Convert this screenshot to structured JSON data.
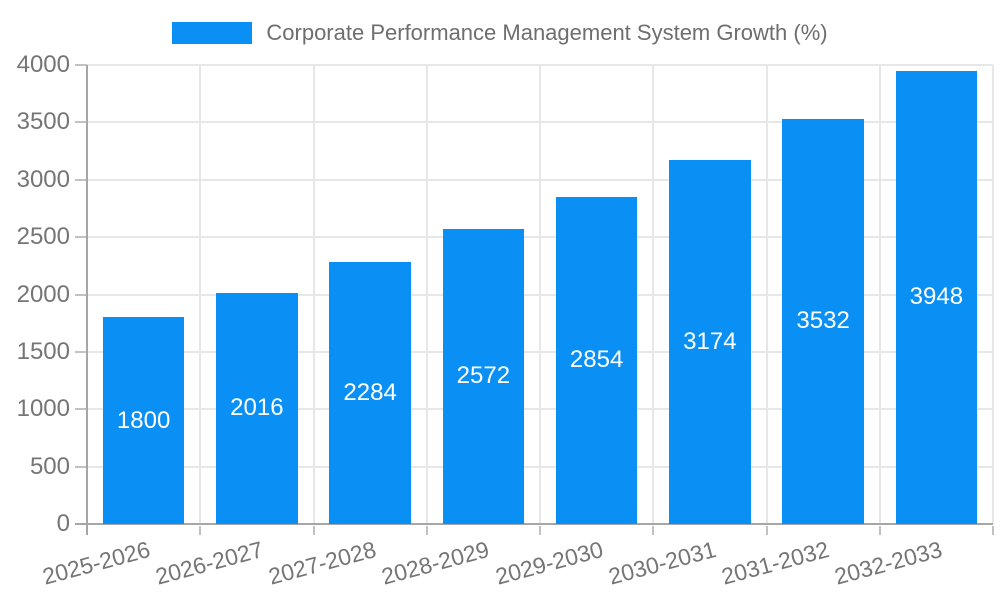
{
  "legend": {
    "label": "Corporate Performance Management System Growth (%)",
    "swatch_color": "#0a90f4"
  },
  "chart_data": {
    "type": "bar",
    "title": "Corporate Performance Management System Growth (%)",
    "categories": [
      "2025-2026",
      "2026-2027",
      "2027-2028",
      "2028-2029",
      "2029-2030",
      "2030-2031",
      "2031-2032",
      "2032-2033"
    ],
    "values": [
      1800,
      2016,
      2284,
      2572,
      2854,
      3174,
      3532,
      3948
    ],
    "value_labels": [
      "1800",
      "2016",
      "2284",
      "2572",
      "2854",
      "3174",
      "3532",
      "3948"
    ],
    "xlabel": "",
    "ylabel": "",
    "ylim": [
      0,
      4000
    ],
    "yticks": [
      0,
      500,
      1000,
      1500,
      2000,
      2500,
      3000,
      3500,
      4000
    ],
    "ytick_labels": [
      "0",
      "500",
      "1000",
      "1500",
      "2000",
      "2500",
      "3000",
      "3500",
      "4000"
    ],
    "grid": true,
    "legend_position": "top-center",
    "x_label_rotation_deg": -15,
    "bar_color": "#0a90f4",
    "bar_label_color": "#ffffff",
    "axis_text_color": "#757575",
    "grid_color": "#e7e7e7",
    "axis_line_color": "#a6a6a6",
    "title_color": "#6e6e6e"
  }
}
